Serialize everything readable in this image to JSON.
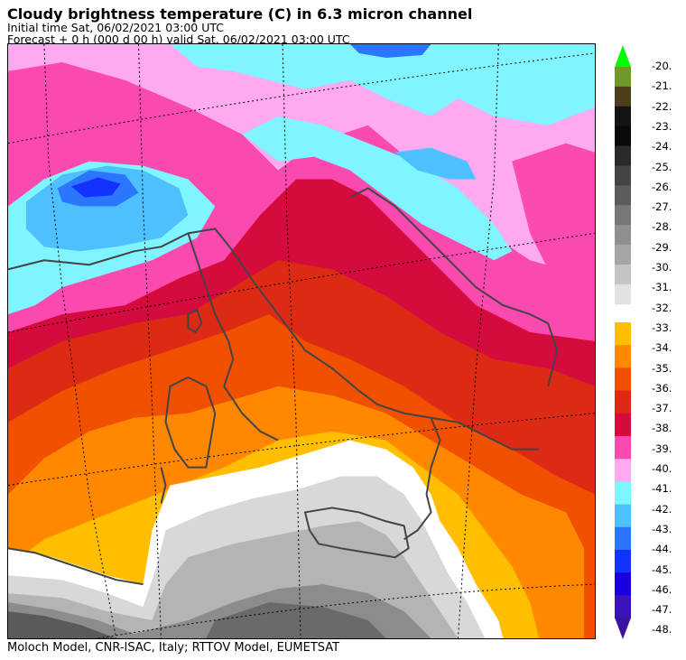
{
  "header": {
    "title": "Cloudy brightness temperature (C) in    6.3 micron channel",
    "initial_time": "Initial time  Sat, 06/02/2021  03:00 UTC",
    "forecast": "Forecast  +   0 h  (000 d 00 h)  valid Sat, 06/02/2021 03:00 UTC"
  },
  "footer": "Moloch Model, CNR-ISAC, Italy; RTTOV Model, EUMETSAT",
  "legend": {
    "labels": [
      "-20.",
      "-21.",
      "-22.",
      "-23.",
      "-24.",
      "-25.",
      "-26.",
      "-27.",
      "-28.",
      "-29.",
      "-30.",
      "-31.",
      "-32.",
      "-33.",
      "-34.",
      "-35.",
      "-36.",
      "-37.",
      "-38.",
      "-39.",
      "-40.",
      "-41.",
      "-42.",
      "-43.",
      "-44.",
      "-45.",
      "-46.",
      "-47.",
      "-48."
    ],
    "colors_top": [
      "#6e9b28",
      "#4c401c",
      "#141414",
      "#0a0a0a",
      "#2a2a2a",
      "#444444",
      "#5c5c5c",
      "#787878",
      "#8f8f8f",
      "#a6a6a6",
      "#c4c4c4",
      "#e2e2e2"
    ],
    "colors_bottom": [
      "#ffbe00",
      "#ff8800",
      "#f05000",
      "#dd2a14",
      "#d40b3c",
      "#fa4ab0",
      "#ffaaf0",
      "#80f5ff",
      "#4ec0ff",
      "#2a76ff",
      "#1432ff",
      "#1a00dd",
      "#3a14b8"
    ],
    "top_arrow_color": "#00ff00",
    "bottom_arrow_color": "#3a14a0"
  },
  "map_palette": {
    "white": "#ffffff",
    "light_grey": "#d8d8d8",
    "mid_grey": "#b4b4b4",
    "dark_grey": "#8c8c8c",
    "darkest_grey": "#5a5a5a",
    "yellow": "#ffbe00",
    "orange": "#ff8800",
    "dark_orange": "#f05000",
    "red": "#dd2a14",
    "crimson": "#d40b3c",
    "pink": "#fa4ab0",
    "light_pink": "#ffaaf0",
    "cyan": "#80f5ff",
    "sky_blue": "#4ec0ff",
    "blue": "#2a76ff",
    "coast_line": "#444444",
    "grid_line": "#000000"
  }
}
